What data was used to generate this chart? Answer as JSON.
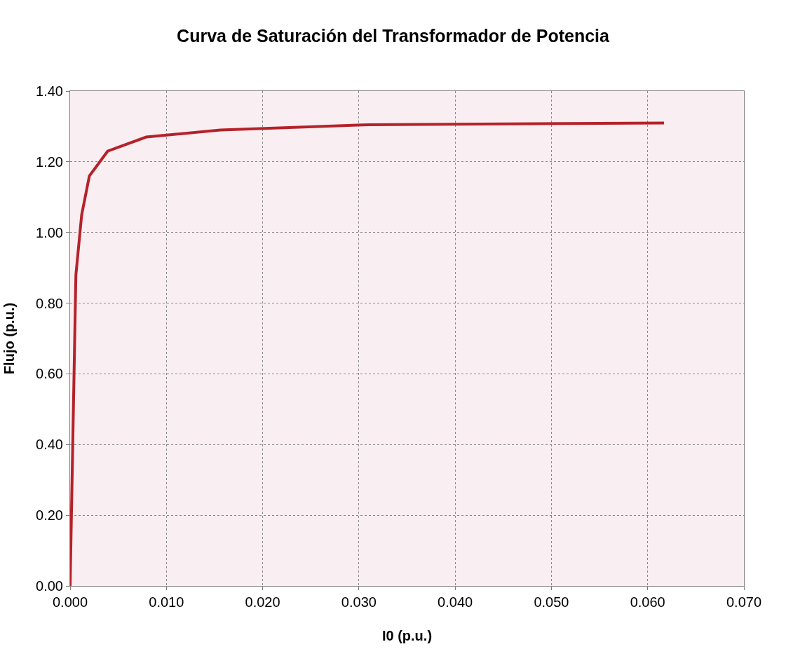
{
  "chart_data": {
    "type": "line",
    "title": "Curva de Saturación del Transformador de Potencia",
    "xlabel": "I0 (p.u.)",
    "ylabel": "Flujo (p.u.)",
    "x": [
      0,
      0.0003,
      0.0006,
      0.0012,
      0.002,
      0.0039,
      0.0079,
      0.0156,
      0.031,
      0.0617
    ],
    "series": [
      {
        "color": "#b5222a",
        "values": [
          0,
          0.44,
          0.88,
          1.05,
          1.16,
          1.23,
          1.27,
          1.29,
          1.305,
          1.31
        ]
      }
    ],
    "xlim": [
      0,
      0.07
    ],
    "xticks": [
      {
        "value": 0,
        "label": "0.000"
      },
      {
        "value": 0.01,
        "label": "0.010"
      },
      {
        "value": 0.02,
        "label": "0.020"
      },
      {
        "value": 0.03,
        "label": "0.030"
      },
      {
        "value": 0.04,
        "label": "0.040"
      },
      {
        "value": 0.05,
        "label": "0.050"
      },
      {
        "value": 0.06,
        "label": "0.060"
      },
      {
        "value": 0.07,
        "label": "0.070"
      }
    ],
    "ylim": [
      0,
      1.4
    ],
    "yticks": [
      {
        "value": 0,
        "label": "0.00"
      },
      {
        "value": 0.2,
        "label": "0.20"
      },
      {
        "value": 0.4,
        "label": "0.40"
      },
      {
        "value": 0.6,
        "label": "0.60"
      },
      {
        "value": 0.8,
        "label": "0.80"
      },
      {
        "value": 1.0,
        "label": "1.00"
      },
      {
        "value": 1.2,
        "label": "1.20"
      },
      {
        "value": 1.4,
        "label": "1.40"
      }
    ],
    "grid": true,
    "marker": "none",
    "line_style": "solid"
  }
}
